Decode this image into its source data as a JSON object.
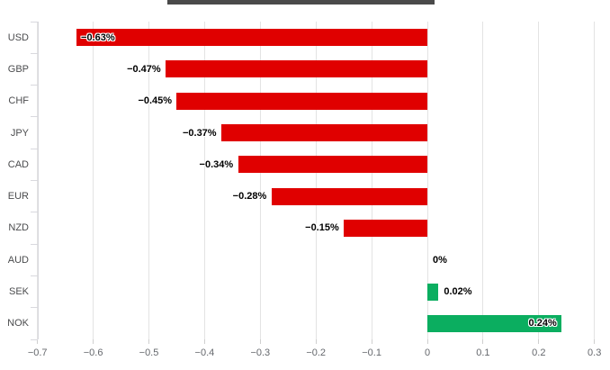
{
  "chart_data": {
    "type": "bar",
    "orientation": "horizontal",
    "title": "",
    "xlabel": "",
    "ylabel": "",
    "categories": [
      "USD",
      "GBP",
      "CHF",
      "JPY",
      "CAD",
      "EUR",
      "NZD",
      "AUD",
      "SEK",
      "NOK"
    ],
    "values": [
      -0.63,
      -0.47,
      -0.45,
      -0.37,
      -0.34,
      -0.28,
      -0.15,
      0,
      0.02,
      0.24
    ],
    "value_labels": [
      "−0.63%",
      "−0.47%",
      "−0.45%",
      "−0.37%",
      "−0.34%",
      "−0.28%",
      "−0.15%",
      "0%",
      "0.02%",
      "0.24%"
    ],
    "unit": "%",
    "xlim": [
      -0.7,
      0.3
    ],
    "x_ticks": [
      -0.7,
      -0.6,
      -0.5,
      -0.4,
      -0.3,
      -0.2,
      -0.1,
      0,
      0.1,
      0.2,
      0.3
    ],
    "x_tick_labels": [
      "−0.7",
      "−0.6",
      "−0.5",
      "−0.4",
      "−0.3",
      "−0.2",
      "−0.1",
      "0",
      "0.1",
      "0.2",
      "0.3"
    ],
    "grid": true,
    "legend": "none",
    "colors": {
      "negative_bar": "#e00000",
      "positive_bar": "#0bae60",
      "data_label": "#000000",
      "category_label": "#4b4c4e",
      "axis_label": "#65686d",
      "gridline": "#e3e3e3",
      "title_remnant": "#4a4a4a"
    }
  }
}
